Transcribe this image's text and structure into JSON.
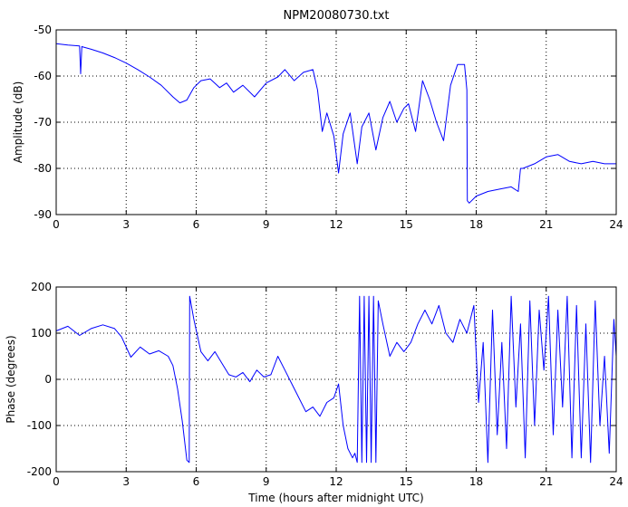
{
  "chart_data": [
    {
      "type": "line",
      "title": "NPM20080730.txt",
      "ylabel": "Amplitude (dB)",
      "xlabel": "",
      "xlim": [
        0,
        24
      ],
      "ylim": [
        -90,
        -50
      ],
      "xticks": [
        "0",
        "3",
        "6",
        "9",
        "12",
        "15",
        "18",
        "21",
        "24"
      ],
      "yticks": [
        "-50",
        "-60",
        "-70",
        "-80",
        "-90"
      ],
      "grid": "dotted",
      "color": "#0000ff",
      "series": [
        {
          "x": [
            0,
            0.5,
            1.0,
            1.05,
            1.1,
            1.15,
            1.5,
            2.0,
            2.5,
            3.0,
            3.5,
            4.0,
            4.5,
            5.0,
            5.3,
            5.6,
            5.9,
            6.2,
            6.6,
            7.0,
            7.3,
            7.6,
            8.0,
            8.5,
            9.0,
            9.5,
            9.8,
            10.2,
            10.6,
            11.0,
            11.2,
            11.4,
            11.6,
            11.9,
            12.1,
            12.3,
            12.6,
            12.9,
            13.1,
            13.4,
            13.7,
            14.0,
            14.3,
            14.6,
            14.9,
            15.1,
            15.4,
            15.7,
            16.0,
            16.3,
            16.6,
            16.9,
            17.2,
            17.5,
            17.6,
            17.62,
            17.7,
            18.0,
            18.5,
            19.0,
            19.5,
            19.8,
            19.9,
            20.0,
            20.5,
            21.0,
            21.5,
            22.0,
            22.5,
            23.0,
            23.5,
            24.0
          ],
          "y": [
            -53.0,
            -53.3,
            -53.5,
            -59.5,
            -53.6,
            -53.7,
            -54.2,
            -55.0,
            -56.0,
            -57.2,
            -58.6,
            -60.2,
            -62.0,
            -64.5,
            -65.8,
            -65.2,
            -62.5,
            -61.0,
            -60.6,
            -62.5,
            -61.5,
            -63.5,
            -62.0,
            -64.5,
            -61.5,
            -60.2,
            -58.6,
            -61.0,
            -59.2,
            -58.6,
            -63.0,
            -72.0,
            -68.0,
            -73.0,
            -81.0,
            -72.5,
            -68.0,
            -79.0,
            -71.0,
            -68.0,
            -76.0,
            -69.0,
            -65.5,
            -70.0,
            -67.0,
            -66.0,
            -72.0,
            -61.0,
            -65.0,
            -70.0,
            -74.0,
            -62.0,
            -57.5,
            -57.5,
            -63.0,
            -87.0,
            -87.5,
            -86.0,
            -85.0,
            -84.5,
            -84.0,
            -85.0,
            -80.0,
            -80.0,
            -79.0,
            -77.5,
            -77.0,
            -78.5,
            -79.0,
            -78.5,
            -79.0,
            -79.0
          ]
        }
      ]
    },
    {
      "type": "line",
      "title": "",
      "ylabel": "Phase (degrees)",
      "xlabel": "Time (hours after midnight UTC)",
      "xlim": [
        0,
        24
      ],
      "ylim": [
        -200,
        200
      ],
      "xticks": [
        "0",
        "3",
        "6",
        "9",
        "12",
        "15",
        "18",
        "21",
        "24"
      ],
      "yticks": [
        "200",
        "100",
        "0",
        "-100",
        "-200"
      ],
      "grid": "dotted",
      "color": "#0000ff",
      "series": [
        {
          "x": [
            0,
            0.5,
            1.0,
            1.5,
            2.0,
            2.5,
            2.8,
            3.2,
            3.6,
            4.0,
            4.4,
            4.8,
            5.0,
            5.2,
            5.4,
            5.6,
            5.7,
            5.72,
            5.9,
            6.2,
            6.5,
            6.8,
            7.1,
            7.4,
            7.7,
            8.0,
            8.3,
            8.6,
            8.9,
            9.2,
            9.5,
            9.8,
            10.1,
            10.4,
            10.7,
            11.0,
            11.3,
            11.6,
            11.9,
            12.1,
            12.3,
            12.5,
            12.7,
            12.8,
            12.9,
            13.0,
            13.1,
            13.2,
            13.3,
            13.4,
            13.5,
            13.6,
            13.7,
            13.8,
            14.0,
            14.3,
            14.6,
            14.9,
            15.2,
            15.5,
            15.8,
            16.1,
            16.4,
            16.7,
            17.0,
            17.3,
            17.6,
            17.9,
            18.1,
            18.3,
            18.5,
            18.7,
            18.9,
            19.1,
            19.3,
            19.5,
            19.7,
            19.9,
            20.1,
            20.3,
            20.5,
            20.7,
            20.9,
            21.1,
            21.3,
            21.5,
            21.7,
            21.9,
            22.1,
            22.3,
            22.5,
            22.7,
            22.9,
            23.1,
            23.3,
            23.5,
            23.7,
            23.9,
            24.0
          ],
          "y": [
            105,
            115,
            95,
            110,
            118,
            110,
            92,
            48,
            70,
            55,
            62,
            50,
            30,
            -20,
            -90,
            -175,
            -180,
            180,
            130,
            60,
            40,
            60,
            35,
            10,
            5,
            15,
            -5,
            20,
            5,
            10,
            50,
            20,
            -10,
            -40,
            -70,
            -60,
            -80,
            -50,
            -40,
            -10,
            -100,
            -150,
            -170,
            -160,
            -180,
            180,
            -180,
            180,
            -180,
            180,
            -180,
            180,
            -180,
            170,
            120,
            50,
            80,
            60,
            80,
            120,
            150,
            120,
            160,
            100,
            80,
            130,
            100,
            160,
            -50,
            80,
            -180,
            150,
            -120,
            80,
            -150,
            180,
            -60,
            120,
            -170,
            170,
            -100,
            150,
            20,
            180,
            -120,
            150,
            -60,
            180,
            -170,
            160,
            -170,
            120,
            -180,
            170,
            -100,
            50,
            -160,
            130,
            50
          ]
        }
      ]
    }
  ]
}
